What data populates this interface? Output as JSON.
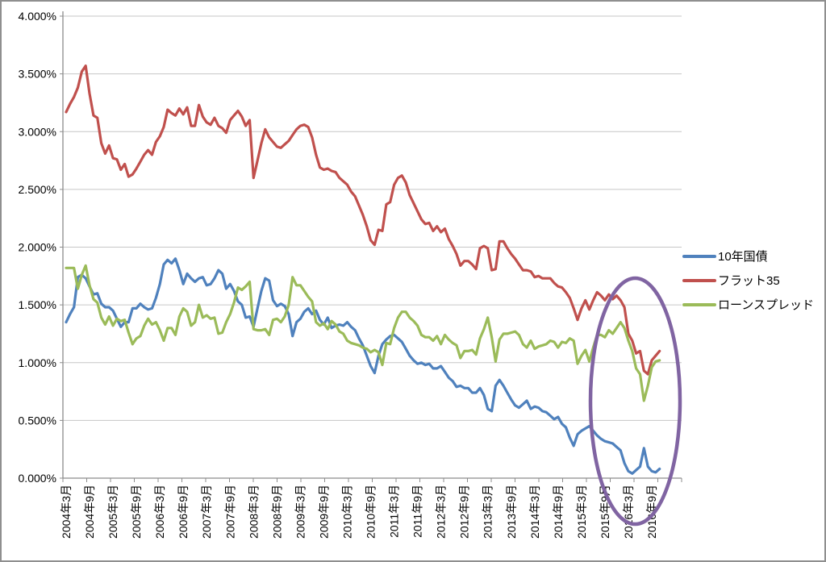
{
  "chart_data": {
    "type": "line",
    "title": "",
    "unit": "percent",
    "grid": true,
    "legend_position": "right",
    "y_axis": {
      "min": 0.0,
      "max": 4.0,
      "tick_step": 0.5,
      "tick_labels": [
        "4.000%",
        "3.500%",
        "3.000%",
        "2.500%",
        "2.000%",
        "1.500%",
        "1.000%",
        "0.500%",
        "0.000%"
      ]
    },
    "x_axis": {
      "start": "2004年3月",
      "months_per_point": 1,
      "tick_labels": [
        "2004年3月",
        "2004年9月",
        "2005年3月",
        "2005年9月",
        "2006年3月",
        "2006年9月",
        "2007年3月",
        "2007年9月",
        "2008年3月",
        "2008年9月",
        "2009年3月",
        "2009年9月",
        "2010年3月",
        "2010年9月",
        "2011年3月",
        "2011年9月",
        "2012年3月",
        "2012年9月",
        "2013年3月",
        "2013年9月",
        "2014年3月",
        "2014年9月",
        "2015年3月",
        "2015年9月",
        "2016年3月",
        "2016年9月"
      ]
    },
    "legend": [
      {
        "label": "10年国債",
        "color": "#4F81BD"
      },
      {
        "label": "フラット35",
        "color": "#C0504D"
      },
      {
        "label": "ローンスプレッド",
        "color": "#9BBB59"
      }
    ],
    "series": [
      {
        "id": "jgb-10y",
        "name": "10年国債",
        "color": "#4F81BD",
        "values": [
          1.35,
          1.42,
          1.48,
          1.74,
          1.76,
          1.73,
          1.66,
          1.59,
          1.6,
          1.51,
          1.48,
          1.48,
          1.45,
          1.38,
          1.31,
          1.35,
          1.35,
          1.47,
          1.47,
          1.51,
          1.48,
          1.46,
          1.47,
          1.56,
          1.68,
          1.85,
          1.89,
          1.86,
          1.9,
          1.8,
          1.68,
          1.77,
          1.73,
          1.7,
          1.73,
          1.74,
          1.67,
          1.68,
          1.73,
          1.8,
          1.77,
          1.64,
          1.68,
          1.62,
          1.53,
          1.5,
          1.39,
          1.4,
          1.31,
          1.47,
          1.62,
          1.73,
          1.71,
          1.54,
          1.49,
          1.51,
          1.49,
          1.42,
          1.23,
          1.35,
          1.38,
          1.44,
          1.47,
          1.42,
          1.45,
          1.37,
          1.33,
          1.39,
          1.3,
          1.32,
          1.33,
          1.32,
          1.35,
          1.31,
          1.28,
          1.21,
          1.15,
          1.06,
          0.97,
          0.91,
          1.06,
          1.16,
          1.2,
          1.23,
          1.24,
          1.21,
          1.18,
          1.12,
          1.06,
          1.02,
          0.99,
          1.0,
          0.98,
          0.99,
          0.95,
          0.95,
          0.97,
          0.92,
          0.87,
          0.84,
          0.79,
          0.8,
          0.78,
          0.78,
          0.74,
          0.74,
          0.78,
          0.72,
          0.6,
          0.58,
          0.8,
          0.85,
          0.8,
          0.74,
          0.68,
          0.63,
          0.61,
          0.64,
          0.67,
          0.6,
          0.62,
          0.61,
          0.58,
          0.57,
          0.54,
          0.51,
          0.53,
          0.47,
          0.44,
          0.35,
          0.28,
          0.38,
          0.41,
          0.43,
          0.45,
          0.41,
          0.37,
          0.34,
          0.32,
          0.31,
          0.3,
          0.27,
          0.24,
          0.13,
          0.06,
          0.04,
          0.07,
          0.1,
          0.26,
          0.1,
          0.06,
          0.05,
          0.08
        ]
      },
      {
        "id": "flat35",
        "name": "フラット35",
        "color": "#C0504D",
        "values": [
          3.17,
          3.24,
          3.3,
          3.38,
          3.52,
          3.57,
          3.33,
          3.14,
          3.12,
          2.9,
          2.81,
          2.88,
          2.77,
          2.76,
          2.67,
          2.72,
          2.61,
          2.63,
          2.68,
          2.74,
          2.8,
          2.84,
          2.8,
          2.91,
          2.96,
          3.04,
          3.19,
          3.16,
          3.14,
          3.2,
          3.15,
          3.21,
          3.05,
          3.05,
          3.23,
          3.13,
          3.08,
          3.06,
          3.12,
          3.05,
          3.03,
          2.99,
          3.1,
          3.14,
          3.18,
          3.13,
          3.05,
          3.1,
          2.6,
          2.75,
          2.9,
          3.02,
          2.95,
          2.91,
          2.87,
          2.86,
          2.89,
          2.92,
          2.97,
          3.02,
          3.05,
          3.06,
          3.04,
          2.95,
          2.8,
          2.69,
          2.67,
          2.68,
          2.66,
          2.65,
          2.6,
          2.57,
          2.54,
          2.48,
          2.44,
          2.36,
          2.28,
          2.18,
          2.06,
          2.02,
          2.15,
          2.14,
          2.37,
          2.39,
          2.54,
          2.6,
          2.62,
          2.56,
          2.45,
          2.38,
          2.31,
          2.24,
          2.2,
          2.21,
          2.14,
          2.18,
          2.13,
          2.16,
          2.07,
          2.01,
          1.94,
          1.84,
          1.88,
          1.88,
          1.85,
          1.81,
          1.99,
          2.01,
          1.99,
          1.8,
          1.81,
          2.05,
          2.05,
          1.99,
          1.94,
          1.9,
          1.85,
          1.8,
          1.8,
          1.79,
          1.74,
          1.75,
          1.73,
          1.73,
          1.73,
          1.69,
          1.66,
          1.65,
          1.61,
          1.56,
          1.47,
          1.37,
          1.47,
          1.54,
          1.46,
          1.54,
          1.61,
          1.58,
          1.54,
          1.59,
          1.55,
          1.58,
          1.54,
          1.48,
          1.25,
          1.19,
          1.08,
          1.1,
          0.93,
          0.9,
          1.02,
          1.06,
          1.1
        ]
      },
      {
        "id": "loan-spread",
        "name": "ローンスプレッド",
        "color": "#9BBB59",
        "values": [
          1.82,
          1.82,
          1.82,
          1.64,
          1.76,
          1.84,
          1.67,
          1.55,
          1.52,
          1.39,
          1.33,
          1.4,
          1.32,
          1.38,
          1.36,
          1.37,
          1.26,
          1.16,
          1.21,
          1.23,
          1.32,
          1.38,
          1.33,
          1.35,
          1.28,
          1.19,
          1.3,
          1.3,
          1.24,
          1.4,
          1.47,
          1.44,
          1.32,
          1.35,
          1.5,
          1.39,
          1.41,
          1.38,
          1.39,
          1.25,
          1.26,
          1.35,
          1.42,
          1.52,
          1.65,
          1.63,
          1.66,
          1.7,
          1.29,
          1.28,
          1.28,
          1.29,
          1.24,
          1.37,
          1.38,
          1.35,
          1.4,
          1.5,
          1.74,
          1.67,
          1.67,
          1.62,
          1.57,
          1.53,
          1.35,
          1.32,
          1.34,
          1.29,
          1.36,
          1.33,
          1.27,
          1.25,
          1.19,
          1.17,
          1.16,
          1.15,
          1.13,
          1.12,
          1.09,
          1.11,
          1.09,
          0.98,
          1.17,
          1.16,
          1.3,
          1.39,
          1.44,
          1.44,
          1.39,
          1.36,
          1.32,
          1.24,
          1.22,
          1.22,
          1.19,
          1.23,
          1.16,
          1.24,
          1.2,
          1.17,
          1.15,
          1.04,
          1.1,
          1.1,
          1.11,
          1.07,
          1.21,
          1.29,
          1.39,
          1.22,
          1.01,
          1.2,
          1.25,
          1.25,
          1.26,
          1.27,
          1.24,
          1.16,
          1.13,
          1.19,
          1.12,
          1.14,
          1.15,
          1.16,
          1.19,
          1.18,
          1.13,
          1.18,
          1.17,
          1.21,
          1.19,
          0.99,
          1.06,
          1.11,
          1.01,
          1.13,
          1.24,
          1.24,
          1.22,
          1.28,
          1.25,
          1.3,
          1.35,
          1.3,
          1.19,
          1.1,
          0.95,
          0.9,
          0.67,
          0.8,
          0.96,
          1.01,
          1.02
        ]
      }
    ],
    "annotation": {
      "shape": "ellipse",
      "color": "#8064A2",
      "highlighted_x_range": [
        "2015年9月",
        "2016年9月"
      ]
    }
  },
  "frame": {
    "background": "#FFFFFF",
    "border_color": "#8F8F8F",
    "gridline_color": "#C6C6C6",
    "axis_color": "#8C8C8C"
  }
}
